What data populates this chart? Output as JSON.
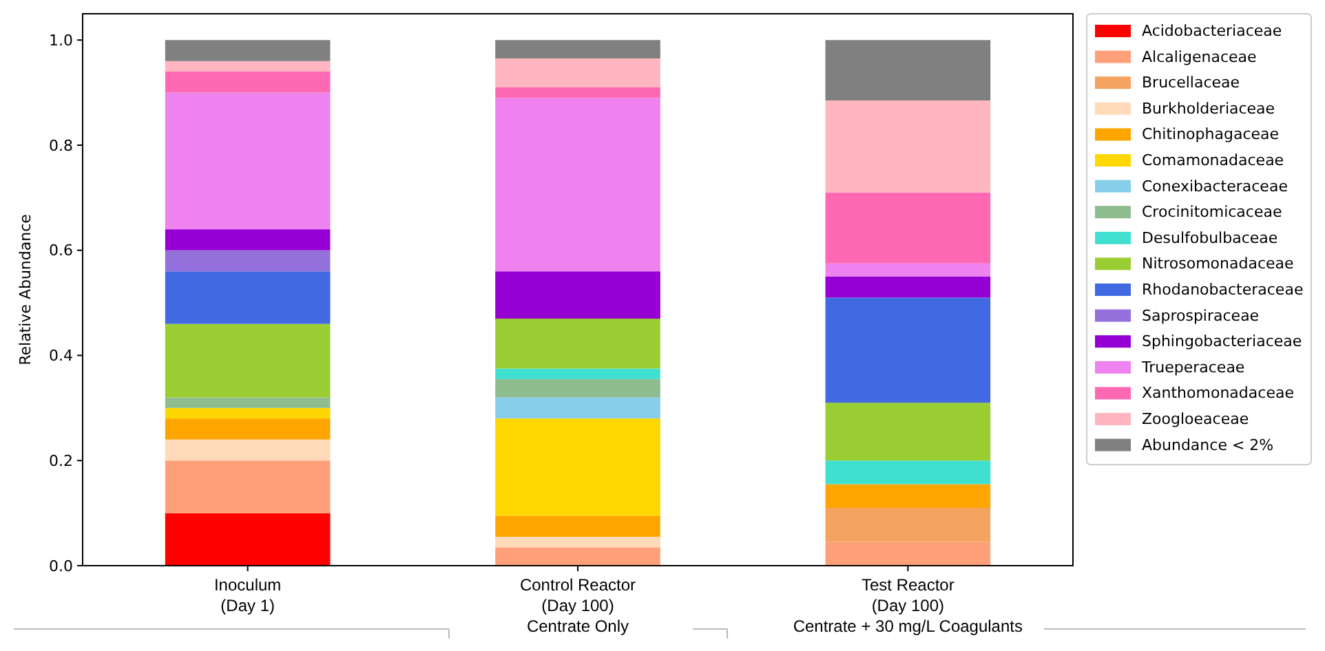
{
  "chart_data": {
    "type": "bar",
    "stacked": true,
    "ylabel": "Relative Abundance",
    "categories": [
      "Inoculum\n(Day 1)",
      "Control Reactor\n(Day 100)\nCentrate Only",
      "Test Reactor\n(Day 100)\nCentrate + 30 mg/L Coagulants"
    ],
    "ylim": [
      0,
      1.05
    ],
    "yticks": [
      {
        "value": 0,
        "label": "0.0"
      },
      {
        "value": 0.2,
        "label": "0.2"
      },
      {
        "value": 0.4,
        "label": "0.4"
      },
      {
        "value": 0.6,
        "label": "0.6"
      },
      {
        "value": 0.8,
        "label": "0.8"
      },
      {
        "value": 1,
        "label": "1.0"
      }
    ],
    "grid": false,
    "legend": "right",
    "series": [
      {
        "name": "Acidobacteriaceae",
        "color": "#ff0000",
        "values": [
          0.1,
          0,
          0
        ]
      },
      {
        "name": "Alcaligenaceae",
        "color": "#ffa07a",
        "values": [
          0.1,
          0.035,
          0.045
        ]
      },
      {
        "name": "Brucellaceae",
        "color": "#f4a460",
        "values": [
          0,
          0,
          0.065
        ]
      },
      {
        "name": "Burkholderiaceae",
        "color": "#ffdab9",
        "values": [
          0.04,
          0.02,
          0
        ]
      },
      {
        "name": "Chitinophagaceae",
        "color": "#ffa500",
        "values": [
          0.04,
          0.04,
          0.045
        ]
      },
      {
        "name": "Comamonadaceae",
        "color": "#ffd700",
        "values": [
          0.02,
          0.185,
          0
        ]
      },
      {
        "name": "Conexibacteraceae",
        "color": "#87ceeb",
        "values": [
          0,
          0.04,
          0
        ]
      },
      {
        "name": "Crocinitomicaceae",
        "color": "#8fbc8f",
        "values": [
          0.02,
          0.035,
          0
        ]
      },
      {
        "name": "Desulfobulbaceae",
        "color": "#40e0d0",
        "values": [
          0,
          0.02,
          0.045
        ]
      },
      {
        "name": "Nitrosomonadaceae",
        "color": "#9acd32",
        "values": [
          0.14,
          0.095,
          0.11
        ]
      },
      {
        "name": "Rhodanobacteraceae",
        "color": "#4169e1",
        "values": [
          0.1,
          0,
          0.2
        ]
      },
      {
        "name": "Saprospiraceae",
        "color": "#9370db",
        "values": [
          0.04,
          0,
          0
        ]
      },
      {
        "name": "Sphingobacteriaceae",
        "color": "#9400d3",
        "values": [
          0.04,
          0.09,
          0.04
        ]
      },
      {
        "name": "Trueperaceae",
        "color": "#ee82ee",
        "values": [
          0.26,
          0.33,
          0.025
        ]
      },
      {
        "name": "Xanthomonadaceae",
        "color": "#ff69b4",
        "values": [
          0.04,
          0.02,
          0.135
        ]
      },
      {
        "name": "Zoogloeaceae",
        "color": "#ffb6c1",
        "values": [
          0.02,
          0.055,
          0.175
        ]
      },
      {
        "name": "Abundance < 2%",
        "color": "#808080",
        "values": [
          0.04,
          0.035,
          0.115
        ]
      }
    ]
  }
}
